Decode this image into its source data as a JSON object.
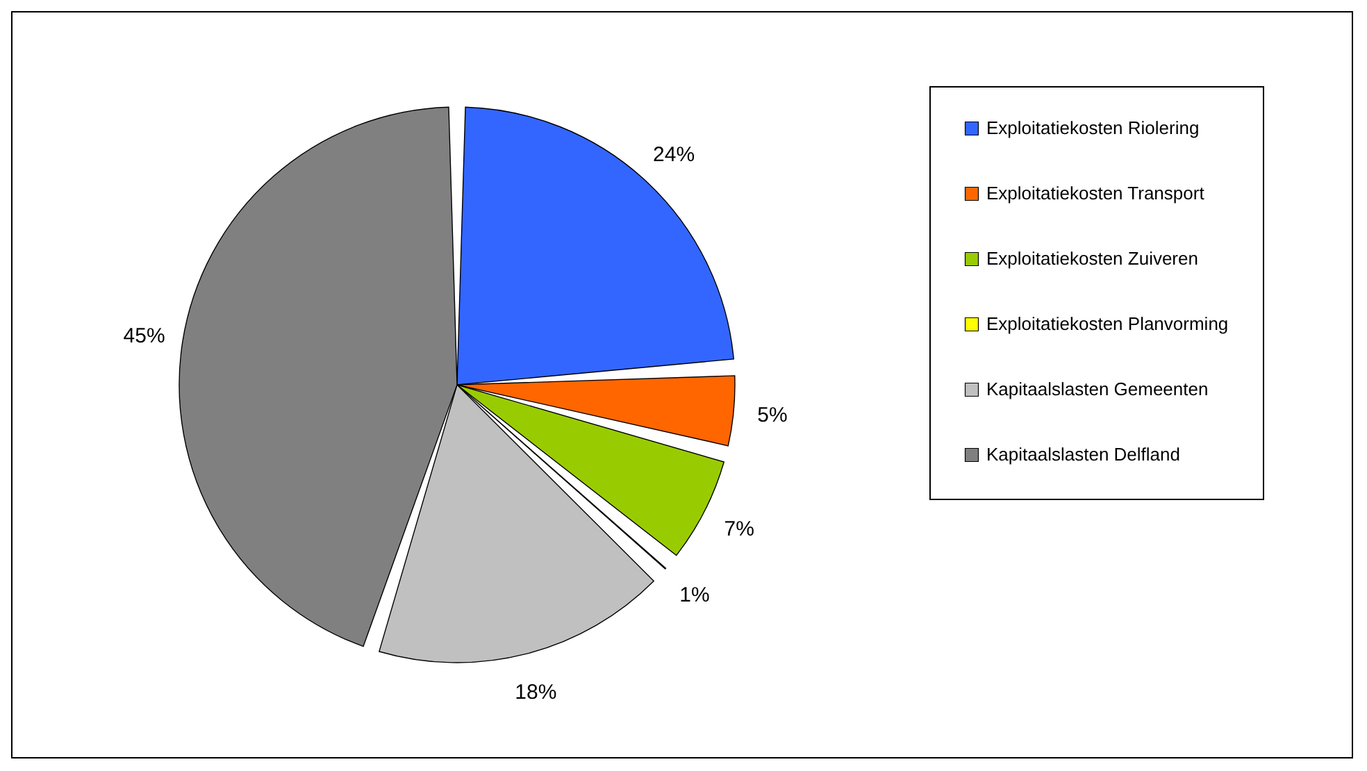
{
  "chart_data": {
    "type": "pie",
    "categories": [
      "Exploitatiekosten Riolering",
      "Exploitatiekosten Transport",
      "Exploitatiekosten Zuiveren",
      "Exploitatiekosten Planvorming",
      "Kapitaalslasten Gemeenten",
      "Kapitaalslasten Delfland"
    ],
    "values": [
      24,
      5,
      7,
      1,
      18,
      45
    ],
    "value_labels": [
      "24%",
      "5%",
      "7%",
      "1%",
      "18%",
      "45%"
    ],
    "colors": [
      "#3366ff",
      "#ff6600",
      "#99cc00",
      "#ffff00",
      "#c0c0c0",
      "#808080"
    ],
    "legend": "right"
  }
}
